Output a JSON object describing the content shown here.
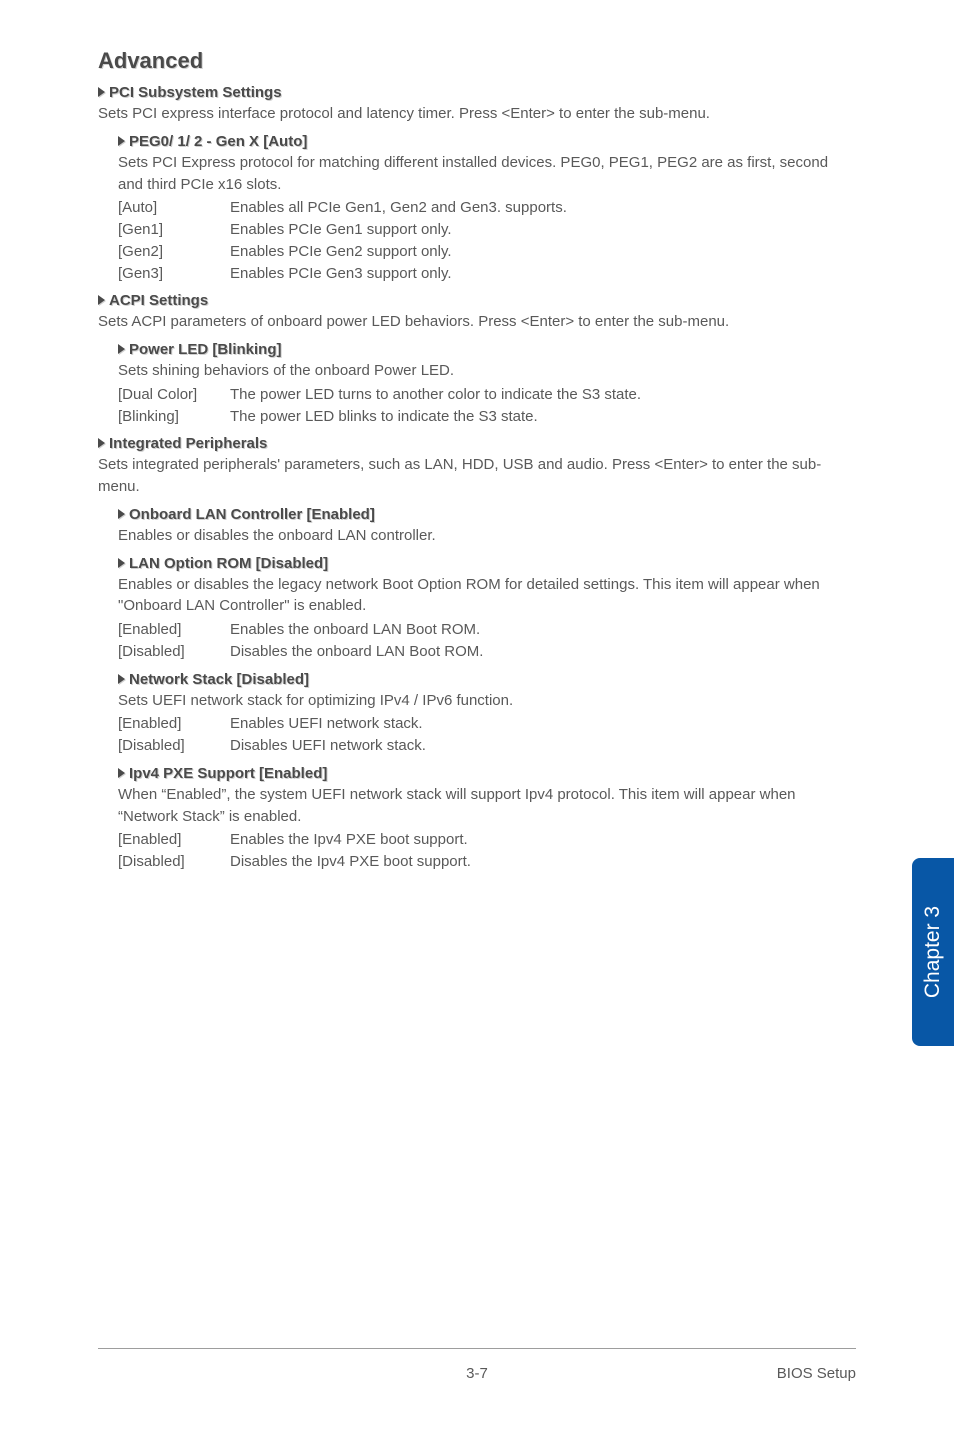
{
  "heading": "Advanced",
  "pci_subsystem": {
    "title": "PCI Subsystem Settings",
    "desc": "Sets PCI express interface protocol and latency timer. Press <Enter> to enter the sub-menu."
  },
  "peg": {
    "title": "PEG0/ 1/ 2 - Gen X [Auto]",
    "desc": "Sets PCI Express protocol for matching different installed devices. PEG0, PEG1, PEG2 are as first, second and third PCIe x16 slots.",
    "options": [
      {
        "key": "[Auto]",
        "val": "Enables all PCIe Gen1, Gen2 and Gen3. supports."
      },
      {
        "key": "[Gen1]",
        "val": "Enables PCIe Gen1 support only."
      },
      {
        "key": "[Gen2]",
        "val": "Enables PCIe Gen2 support only."
      },
      {
        "key": "[Gen3]",
        "val": "Enables PCIe Gen3 support only."
      }
    ]
  },
  "acpi": {
    "title": "ACPI Settings",
    "desc": "Sets ACPI parameters of onboard power LED behaviors. Press <Enter> to enter the sub-menu."
  },
  "power_led": {
    "title": "Power LED [Blinking]",
    "desc": "Sets shining behaviors of the onboard Power LED.",
    "options": [
      {
        "key": "[Dual Color]",
        "val": "The power LED turns to another color to indicate the S3 state."
      },
      {
        "key": "[Blinking]",
        "val": "The power LED blinks to indicate the S3 state."
      }
    ]
  },
  "integrated": {
    "title": "Integrated Peripherals",
    "desc": "Sets integrated peripherals' parameters, such as LAN, HDD, USB and audio. Press <Enter> to enter the sub-menu."
  },
  "onboard_lan": {
    "title": "Onboard LAN Controller [Enabled]",
    "desc": "Enables or disables the onboard LAN controller."
  },
  "lan_rom": {
    "title": "LAN Option ROM [Disabled]",
    "desc": "Enables or disables the legacy network Boot Option ROM for detailed settings. This item will appear when \"Onboard LAN Controller\" is enabled.",
    "options": [
      {
        "key": "[Enabled]",
        "val": "Enables the onboard LAN Boot ROM."
      },
      {
        "key": "[Disabled]",
        "val": "Disables the onboard LAN Boot ROM."
      }
    ]
  },
  "netstack": {
    "title": "Network Stack [Disabled]",
    "desc": "Sets UEFI network stack for optimizing IPv4 / IPv6 function.",
    "options": [
      {
        "key": "[Enabled]",
        "val": "Enables UEFI network stack."
      },
      {
        "key": "[Disabled]",
        "val": "Disables UEFI network stack."
      }
    ]
  },
  "ipv4": {
    "title": "Ipv4 PXE Support [Enabled]",
    "desc": "When “Enabled”, the system UEFI network stack will support Ipv4 protocol. This item will appear when “Network Stack” is enabled.",
    "options": [
      {
        "key": "[Enabled]",
        "val": "Enables the Ipv4 PXE boot support."
      },
      {
        "key": "[Disabled]",
        "val": "Disables the Ipv4 PXE boot support."
      }
    ]
  },
  "side_tab": "Chapter 3",
  "footer": {
    "page": "3-7",
    "section": "BIOS Setup"
  },
  "colors": {
    "text": "#595959",
    "heading": "#4a4a4a",
    "shadow": "#d0d0d0",
    "tab_bg": "#0857a6",
    "tab_text": "#ffffff",
    "hr": "#9d9d9d",
    "bg": "#ffffff"
  }
}
